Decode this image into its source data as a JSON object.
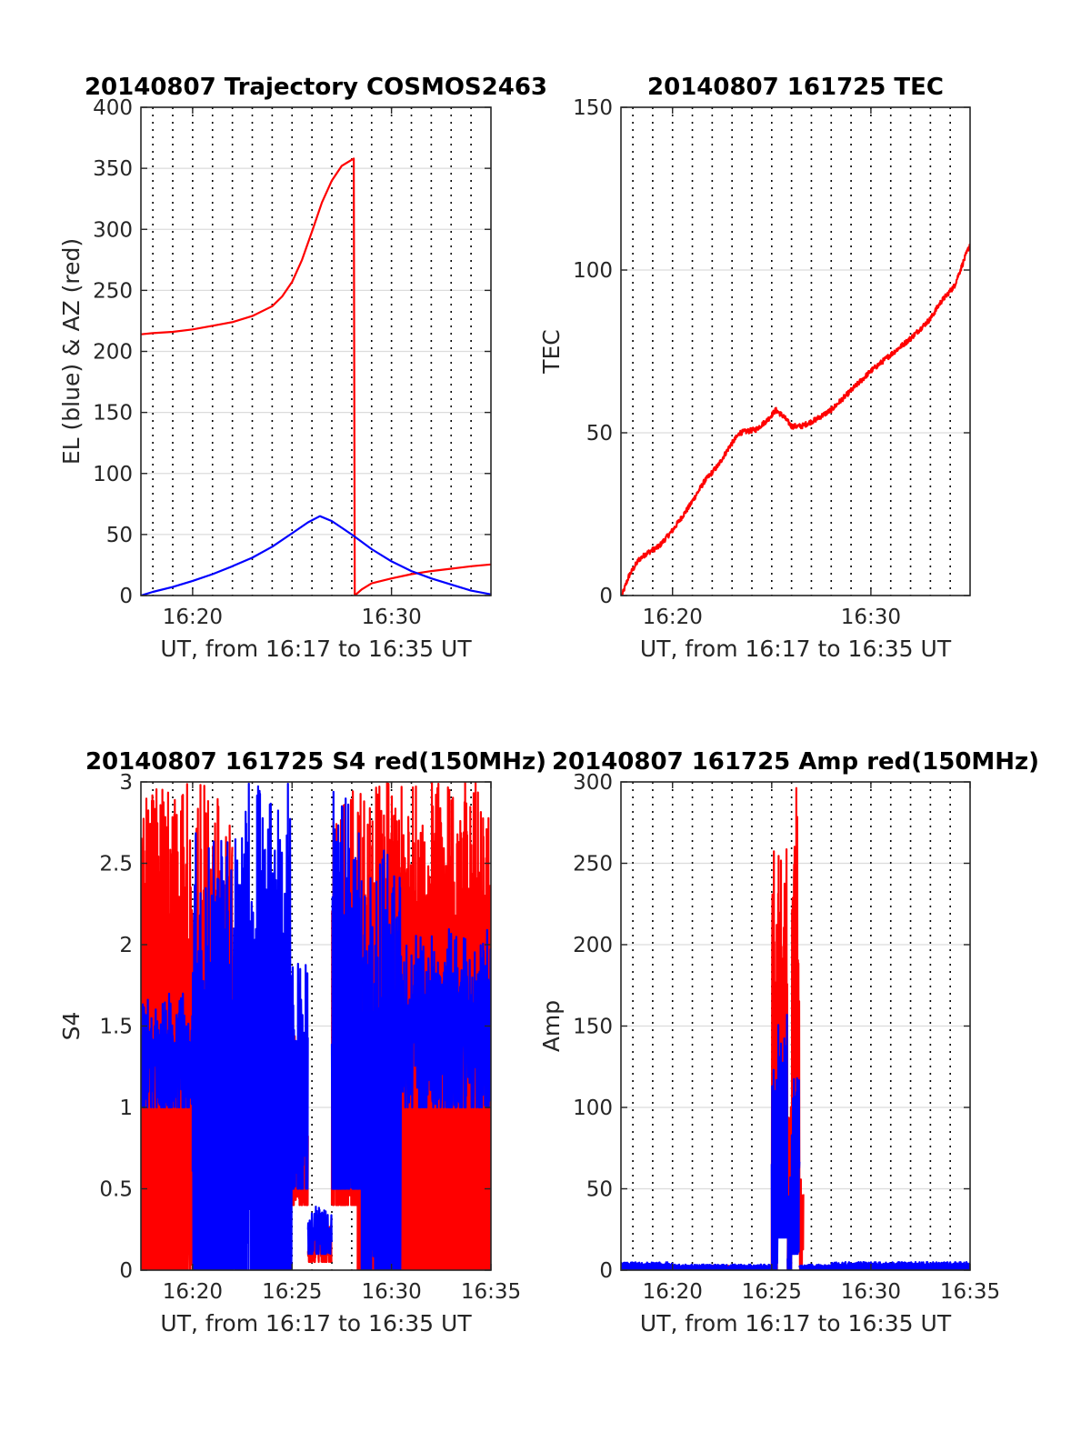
{
  "figure": {
    "background": "#ffffff"
  },
  "colors": {
    "red": "#ff0000",
    "blue": "#0000ff",
    "grid": "#dcdcdc",
    "frame": "#262626"
  },
  "chart_data": [
    {
      "type": "line",
      "title": "20140807 Trajectory COSMOS2463",
      "xlabel": "UT, from 16:17 to 16:35 UT",
      "ylabel": "EL (blue) & AZ (red)",
      "xlim": [
        17.4,
        35.0
      ],
      "ylim": [
        0,
        400
      ],
      "xtick_values": [
        20,
        30
      ],
      "xtick_labels": [
        "16:20",
        "16:30"
      ],
      "ytick_values": [
        0,
        50,
        100,
        150,
        200,
        250,
        300,
        350,
        400
      ],
      "ytick_labels": [
        "0",
        "50",
        "100",
        "150",
        "200",
        "250",
        "300",
        "350",
        "400"
      ],
      "grid": true,
      "vlines_minutes": [
        18,
        19,
        20,
        21,
        22,
        23,
        24,
        25,
        26,
        27,
        28,
        29,
        30,
        31,
        32,
        33,
        34
      ],
      "series": [
        {
          "color": "#ff0000",
          "points": [
            [
              17.4,
              214
            ],
            [
              18,
              215
            ],
            [
              19,
              216
            ],
            [
              20,
              218
            ],
            [
              21,
              221
            ],
            [
              22,
              224
            ],
            [
              23,
              229
            ],
            [
              24,
              237
            ],
            [
              24.5,
              245
            ],
            [
              25,
              257
            ],
            [
              25.5,
              275
            ],
            [
              26,
              298
            ],
            [
              26.5,
              322
            ],
            [
              27,
              340
            ],
            [
              27.5,
              352
            ],
            [
              28.1,
              358
            ],
            [
              28.15,
              0
            ],
            [
              28.5,
              5
            ],
            [
              29,
              10
            ],
            [
              30,
              14
            ],
            [
              31,
              17.5
            ],
            [
              32,
              20
            ],
            [
              33,
              22
            ],
            [
              34,
              24
            ],
            [
              35,
              25.5
            ]
          ]
        },
        {
          "color": "#0000ff",
          "points": [
            [
              17.4,
              0
            ],
            [
              18,
              3
            ],
            [
              19,
              7
            ],
            [
              20,
              12
            ],
            [
              21,
              17.5
            ],
            [
              22,
              24
            ],
            [
              23,
              31
            ],
            [
              24,
              40
            ],
            [
              25,
              51
            ],
            [
              25.8,
              60
            ],
            [
              26.4,
              65
            ],
            [
              27,
              61
            ],
            [
              28,
              50
            ],
            [
              29,
              38
            ],
            [
              30,
              28
            ],
            [
              31,
              20
            ],
            [
              32,
              14
            ],
            [
              33,
              9
            ],
            [
              34,
              4
            ],
            [
              35,
              1
            ]
          ]
        }
      ]
    },
    {
      "type": "line",
      "title": "20140807 161725 TEC",
      "xlabel": "UT, from 16:17 to 16:35 UT",
      "ylabel": "TEC",
      "xlim": [
        17.4,
        35.0
      ],
      "ylim": [
        0,
        150
      ],
      "xtick_values": [
        20,
        30
      ],
      "xtick_labels": [
        "16:20",
        "16:30"
      ],
      "ytick_values": [
        0,
        50,
        100,
        150
      ],
      "ytick_labels": [
        "0",
        "50",
        "100",
        "150"
      ],
      "grid": true,
      "vlines_minutes": [
        18,
        19,
        20,
        21,
        22,
        23,
        24,
        25,
        26,
        27,
        28,
        29,
        30,
        31,
        32,
        33,
        34
      ],
      "series": [
        {
          "color": "#ff0000",
          "noise": 0.8,
          "points": [
            [
              17.45,
              0
            ],
            [
              17.8,
              6
            ],
            [
              18.3,
              11
            ],
            [
              18.7,
              13
            ],
            [
              19.3,
              15
            ],
            [
              20,
              20
            ],
            [
              20.8,
              27
            ],
            [
              21.6,
              35
            ],
            [
              22.3,
              40
            ],
            [
              22.9,
              46
            ],
            [
              23.4,
              50
            ],
            [
              24.2,
              51
            ],
            [
              24.8,
              54
            ],
            [
              25.2,
              57
            ],
            [
              25.6,
              55
            ],
            [
              26,
              52
            ],
            [
              26.5,
              52
            ],
            [
              27.2,
              54
            ],
            [
              28,
              57
            ],
            [
              29,
              63
            ],
            [
              30,
              69
            ],
            [
              31,
              74
            ],
            [
              32,
              79
            ],
            [
              33,
              85
            ],
            [
              33.5,
              90
            ],
            [
              34.2,
              95
            ],
            [
              35,
              108
            ]
          ]
        }
      ]
    },
    {
      "type": "line",
      "title": "20140807 161725 S4 red(150MHz)",
      "xlabel": "UT, from 16:17 to 16:35 UT",
      "ylabel": "S4",
      "xlim": [
        17.4,
        35.0
      ],
      "ylim": [
        0,
        3
      ],
      "xtick_values": [
        20,
        25,
        30,
        35
      ],
      "xtick_labels": [
        "16:20",
        "16:25",
        "16:30",
        "16:35"
      ],
      "ytick_values": [
        0,
        0.5,
        1,
        1.5,
        2,
        2.5,
        3
      ],
      "ytick_labels": [
        "0",
        "0.5",
        "1",
        "1.5",
        "2",
        "2.5",
        "3"
      ],
      "grid": true,
      "vlines_minutes": [
        18,
        19,
        20,
        21,
        22,
        23,
        24,
        25,
        26,
        27,
        28,
        29,
        30,
        31,
        32,
        33,
        34
      ],
      "series": [
        {
          "color": "#ff0000",
          "kind": "noisy-band",
          "segments": [
            {
              "x0": 17.4,
              "x1": 19.7,
              "lo": 0,
              "hi": 3,
              "dense": 0.8
            },
            {
              "x0": 19.7,
              "x1": 22.0,
              "lo": 0,
              "hi": 3,
              "dense": 0.5
            },
            {
              "x0": 22.0,
              "x1": 24.5,
              "lo": 0.6,
              "hi": 1.9,
              "dense": 0.35
            },
            {
              "x0": 24.5,
              "x1": 25.8,
              "lo": 0.4,
              "hi": 1.5,
              "dense": 0.3
            },
            {
              "x0": 25.8,
              "x1": 27.0,
              "lo": 0.05,
              "hi": 0.3,
              "dense": 0.2
            },
            {
              "x0": 27.0,
              "x1": 28.3,
              "lo": 0.4,
              "hi": 3,
              "dense": 0.4
            },
            {
              "x0": 28.3,
              "x1": 35.0,
              "lo": 0,
              "hi": 3,
              "dense": 0.9
            }
          ]
        },
        {
          "color": "#0000ff",
          "kind": "noisy-band",
          "segments": [
            {
              "x0": 17.4,
              "x1": 20.0,
              "lo": 1.0,
              "hi": 1.7,
              "dense": 0.2
            },
            {
              "x0": 20.0,
              "x1": 22.5,
              "lo": 0,
              "hi": 2.7,
              "dense": 0.45
            },
            {
              "x0": 22.5,
              "x1": 25.0,
              "lo": 0,
              "hi": 3,
              "dense": 0.45
            },
            {
              "x0": 25.0,
              "x1": 25.8,
              "lo": 0.5,
              "hi": 1.9,
              "dense": 0.3
            },
            {
              "x0": 25.8,
              "x1": 27.0,
              "lo": 0.1,
              "hi": 0.4,
              "dense": 0.2
            },
            {
              "x0": 27.0,
              "x1": 28.5,
              "lo": 0.5,
              "hi": 3,
              "dense": 0.45
            },
            {
              "x0": 28.5,
              "x1": 30.5,
              "lo": 0,
              "hi": 2.6,
              "dense": 0.45
            },
            {
              "x0": 30.5,
              "x1": 35.0,
              "lo": 1.0,
              "hi": 2.1,
              "dense": 0.2
            }
          ]
        }
      ]
    },
    {
      "type": "line",
      "title": "20140807 161725 Amp red(150MHz)",
      "xlabel": "UT, from 16:17 to 16:35 UT",
      "ylabel": "Amp",
      "xlim": [
        17.4,
        35.0
      ],
      "ylim": [
        0,
        300
      ],
      "xtick_values": [
        20,
        25,
        30,
        35
      ],
      "xtick_labels": [
        "16:20",
        "16:25",
        "16:30",
        "16:35"
      ],
      "ytick_values": [
        0,
        50,
        100,
        150,
        200,
        250,
        300
      ],
      "ytick_labels": [
        "0",
        "50",
        "100",
        "150",
        "200",
        "250",
        "300"
      ],
      "grid": true,
      "vlines_minutes": [
        18,
        19,
        20,
        21,
        22,
        23,
        24,
        25,
        26,
        27,
        28,
        29,
        30,
        31,
        32,
        33,
        34
      ],
      "series": [
        {
          "color": "#ff0000",
          "kind": "noisy-band",
          "segments": [
            {
              "x0": 17.4,
              "x1": 25.0,
              "lo": 0,
              "hi": 3,
              "dense": 0.1
            },
            {
              "x0": 25.0,
              "x1": 25.3,
              "lo": 0,
              "hi": 270,
              "dense": 0.6
            },
            {
              "x0": 25.3,
              "x1": 25.8,
              "lo": 30,
              "hi": 262,
              "dense": 0.7
            },
            {
              "x0": 25.8,
              "x1": 26.0,
              "lo": 0,
              "hi": 120,
              "dense": 0.5
            },
            {
              "x0": 26.0,
              "x1": 26.4,
              "lo": 20,
              "hi": 297,
              "dense": 0.7
            },
            {
              "x0": 26.4,
              "x1": 26.6,
              "lo": 0,
              "hi": 60,
              "dense": 0.4
            },
            {
              "x0": 26.6,
              "x1": 35.0,
              "lo": 0,
              "hi": 3,
              "dense": 0.1
            }
          ]
        },
        {
          "color": "#0000ff",
          "kind": "noisy-band",
          "segments": [
            {
              "x0": 17.4,
              "x1": 20.0,
              "lo": 0,
              "hi": 5,
              "dense": 0.5
            },
            {
              "x0": 20.0,
              "x1": 25.0,
              "lo": 0,
              "hi": 3.5,
              "dense": 0.5
            },
            {
              "x0": 25.0,
              "x1": 25.3,
              "lo": 0,
              "hi": 130,
              "dense": 0.6
            },
            {
              "x0": 25.3,
              "x1": 25.8,
              "lo": 20,
              "hi": 158,
              "dense": 0.6
            },
            {
              "x0": 25.8,
              "x1": 26.0,
              "lo": 0,
              "hi": 60,
              "dense": 0.4
            },
            {
              "x0": 26.0,
              "x1": 26.4,
              "lo": 10,
              "hi": 125,
              "dense": 0.6
            },
            {
              "x0": 26.4,
              "x1": 28.0,
              "lo": 0,
              "hi": 3.5,
              "dense": 0.5
            },
            {
              "x0": 28.0,
              "x1": 35.0,
              "lo": 0,
              "hi": 5,
              "dense": 0.5
            }
          ]
        }
      ]
    }
  ]
}
